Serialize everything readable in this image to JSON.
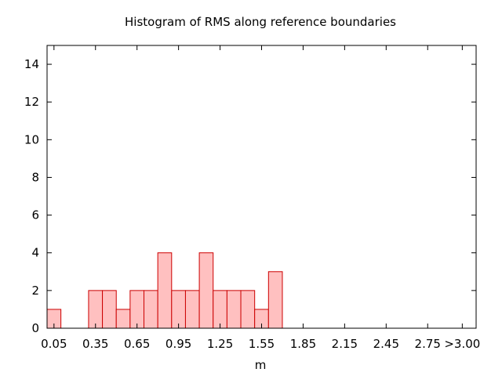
{
  "chart_data": {
    "type": "bar",
    "title": "Histogram of RMS along reference boundaries",
    "xlabel": "m",
    "ylabel": "",
    "ylim": [
      0,
      15
    ],
    "yticks": [
      0,
      2,
      4,
      6,
      8,
      10,
      12,
      14
    ],
    "xlim": [
      0,
      3.1
    ],
    "bin_width": 0.1,
    "xtick_values": [
      0.05,
      0.35,
      0.65,
      0.95,
      1.25,
      1.55,
      1.85,
      2.15,
      2.45,
      2.75,
      3.0
    ],
    "xtick_labels": [
      "0.05",
      "0.35",
      "0.65",
      "0.95",
      "1.25",
      "1.55",
      "1.85",
      "2.15",
      "2.45",
      "2.75",
      ">3.00"
    ],
    "bins": [
      0.05,
      0.15,
      0.25,
      0.35,
      0.45,
      0.55,
      0.65,
      0.75,
      0.85,
      0.95,
      1.05,
      1.15,
      1.25,
      1.35,
      1.45,
      1.55,
      1.65
    ],
    "values": [
      1,
      0,
      0,
      2,
      2,
      1,
      2,
      2,
      4,
      2,
      2,
      4,
      2,
      2,
      2,
      1,
      3
    ],
    "bar_color": "#ffc0c0",
    "bar_edge_color": "#cc0000",
    "grid": false
  }
}
